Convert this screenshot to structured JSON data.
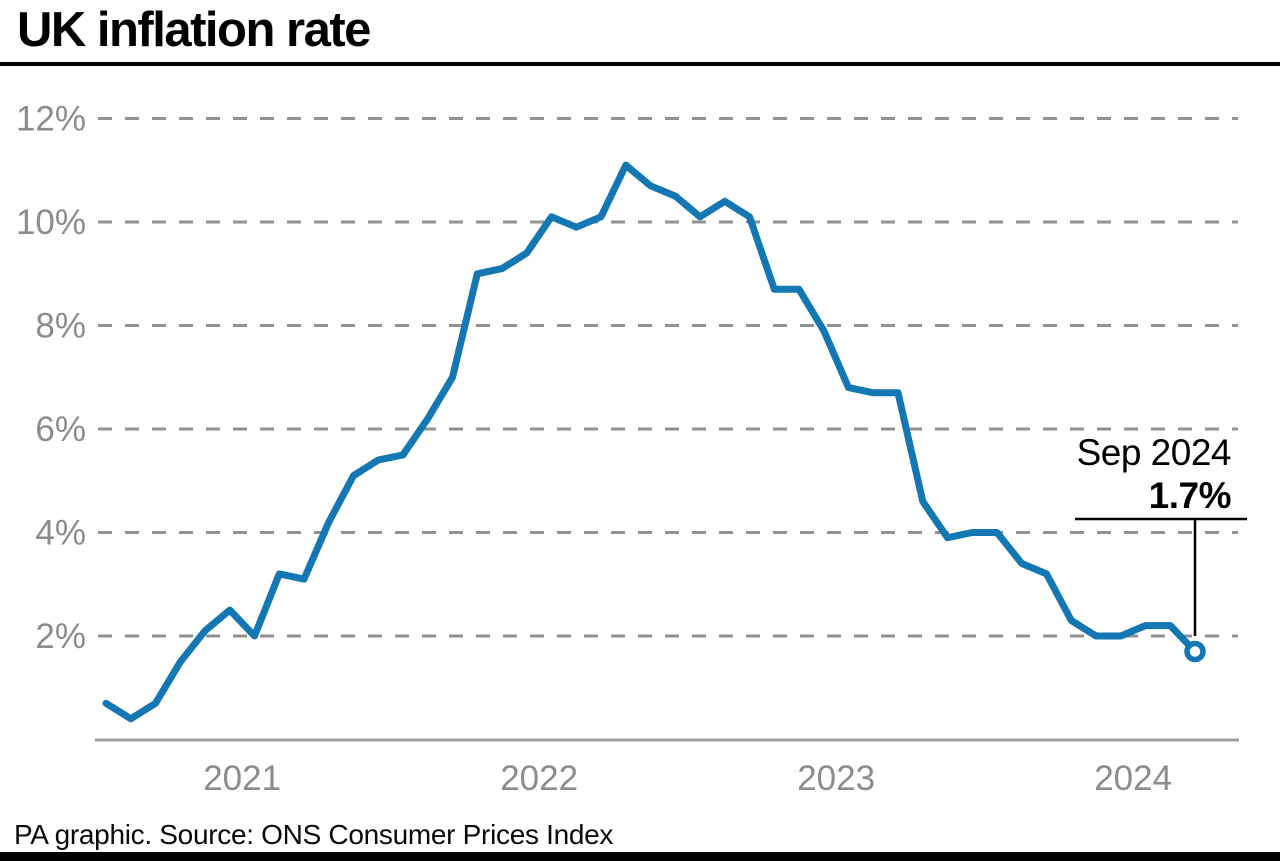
{
  "title": "UK inflation rate",
  "annotation": {
    "label": "Sep 2024",
    "value": "1.7%"
  },
  "footer": {
    "source_text": "PA graphic. Source: ONS Consumer Prices Index"
  },
  "colors": {
    "line": "#1377b4",
    "marker_fill": "#ffffff",
    "axis_text": "#8c8c8c",
    "gridline": "#919191",
    "axis_line": "#a0a0a0",
    "annotation_line": "#000000",
    "title": "#000000"
  },
  "chart_data": {
    "type": "line",
    "title": "UK inflation rate",
    "unit": "%",
    "x": [
      "2021-01",
      "2021-02",
      "2021-03",
      "2021-04",
      "2021-05",
      "2021-06",
      "2021-07",
      "2021-08",
      "2021-09",
      "2021-10",
      "2021-11",
      "2021-12",
      "2022-01",
      "2022-02",
      "2022-03",
      "2022-04",
      "2022-05",
      "2022-06",
      "2022-07",
      "2022-08",
      "2022-09",
      "2022-10",
      "2022-11",
      "2022-12",
      "2023-01",
      "2023-02",
      "2023-03",
      "2023-04",
      "2023-05",
      "2023-06",
      "2023-07",
      "2023-08",
      "2023-09",
      "2023-10",
      "2023-11",
      "2023-12",
      "2024-01",
      "2024-02",
      "2024-03",
      "2024-04",
      "2024-05",
      "2024-06",
      "2024-07",
      "2024-08",
      "2024-09"
    ],
    "values": [
      0.7,
      0.4,
      0.7,
      1.5,
      2.1,
      2.5,
      2.0,
      3.2,
      3.1,
      4.2,
      5.1,
      5.4,
      5.5,
      6.2,
      7.0,
      9.0,
      9.1,
      9.4,
      10.1,
      9.9,
      10.1,
      11.1,
      10.7,
      10.5,
      10.1,
      10.4,
      10.1,
      8.7,
      8.7,
      7.9,
      6.8,
      6.7,
      6.7,
      4.6,
      3.9,
      4.0,
      4.0,
      3.4,
      3.2,
      2.3,
      2.0,
      2.0,
      2.2,
      2.2,
      1.7
    ],
    "x_tick_labels": [
      "2021",
      "2022",
      "2023",
      "2024"
    ],
    "y_ticks": [
      2,
      4,
      6,
      8,
      10,
      12
    ],
    "y_tick_suffix": "%",
    "ylim": [
      0,
      12.6
    ],
    "grid": "horizontal-dashed",
    "legend": "none",
    "last_point": {
      "x": "2024-09",
      "y": 1.7,
      "marker": "open-circle",
      "label": "Sep 2024",
      "value_label": "1.7%"
    }
  }
}
